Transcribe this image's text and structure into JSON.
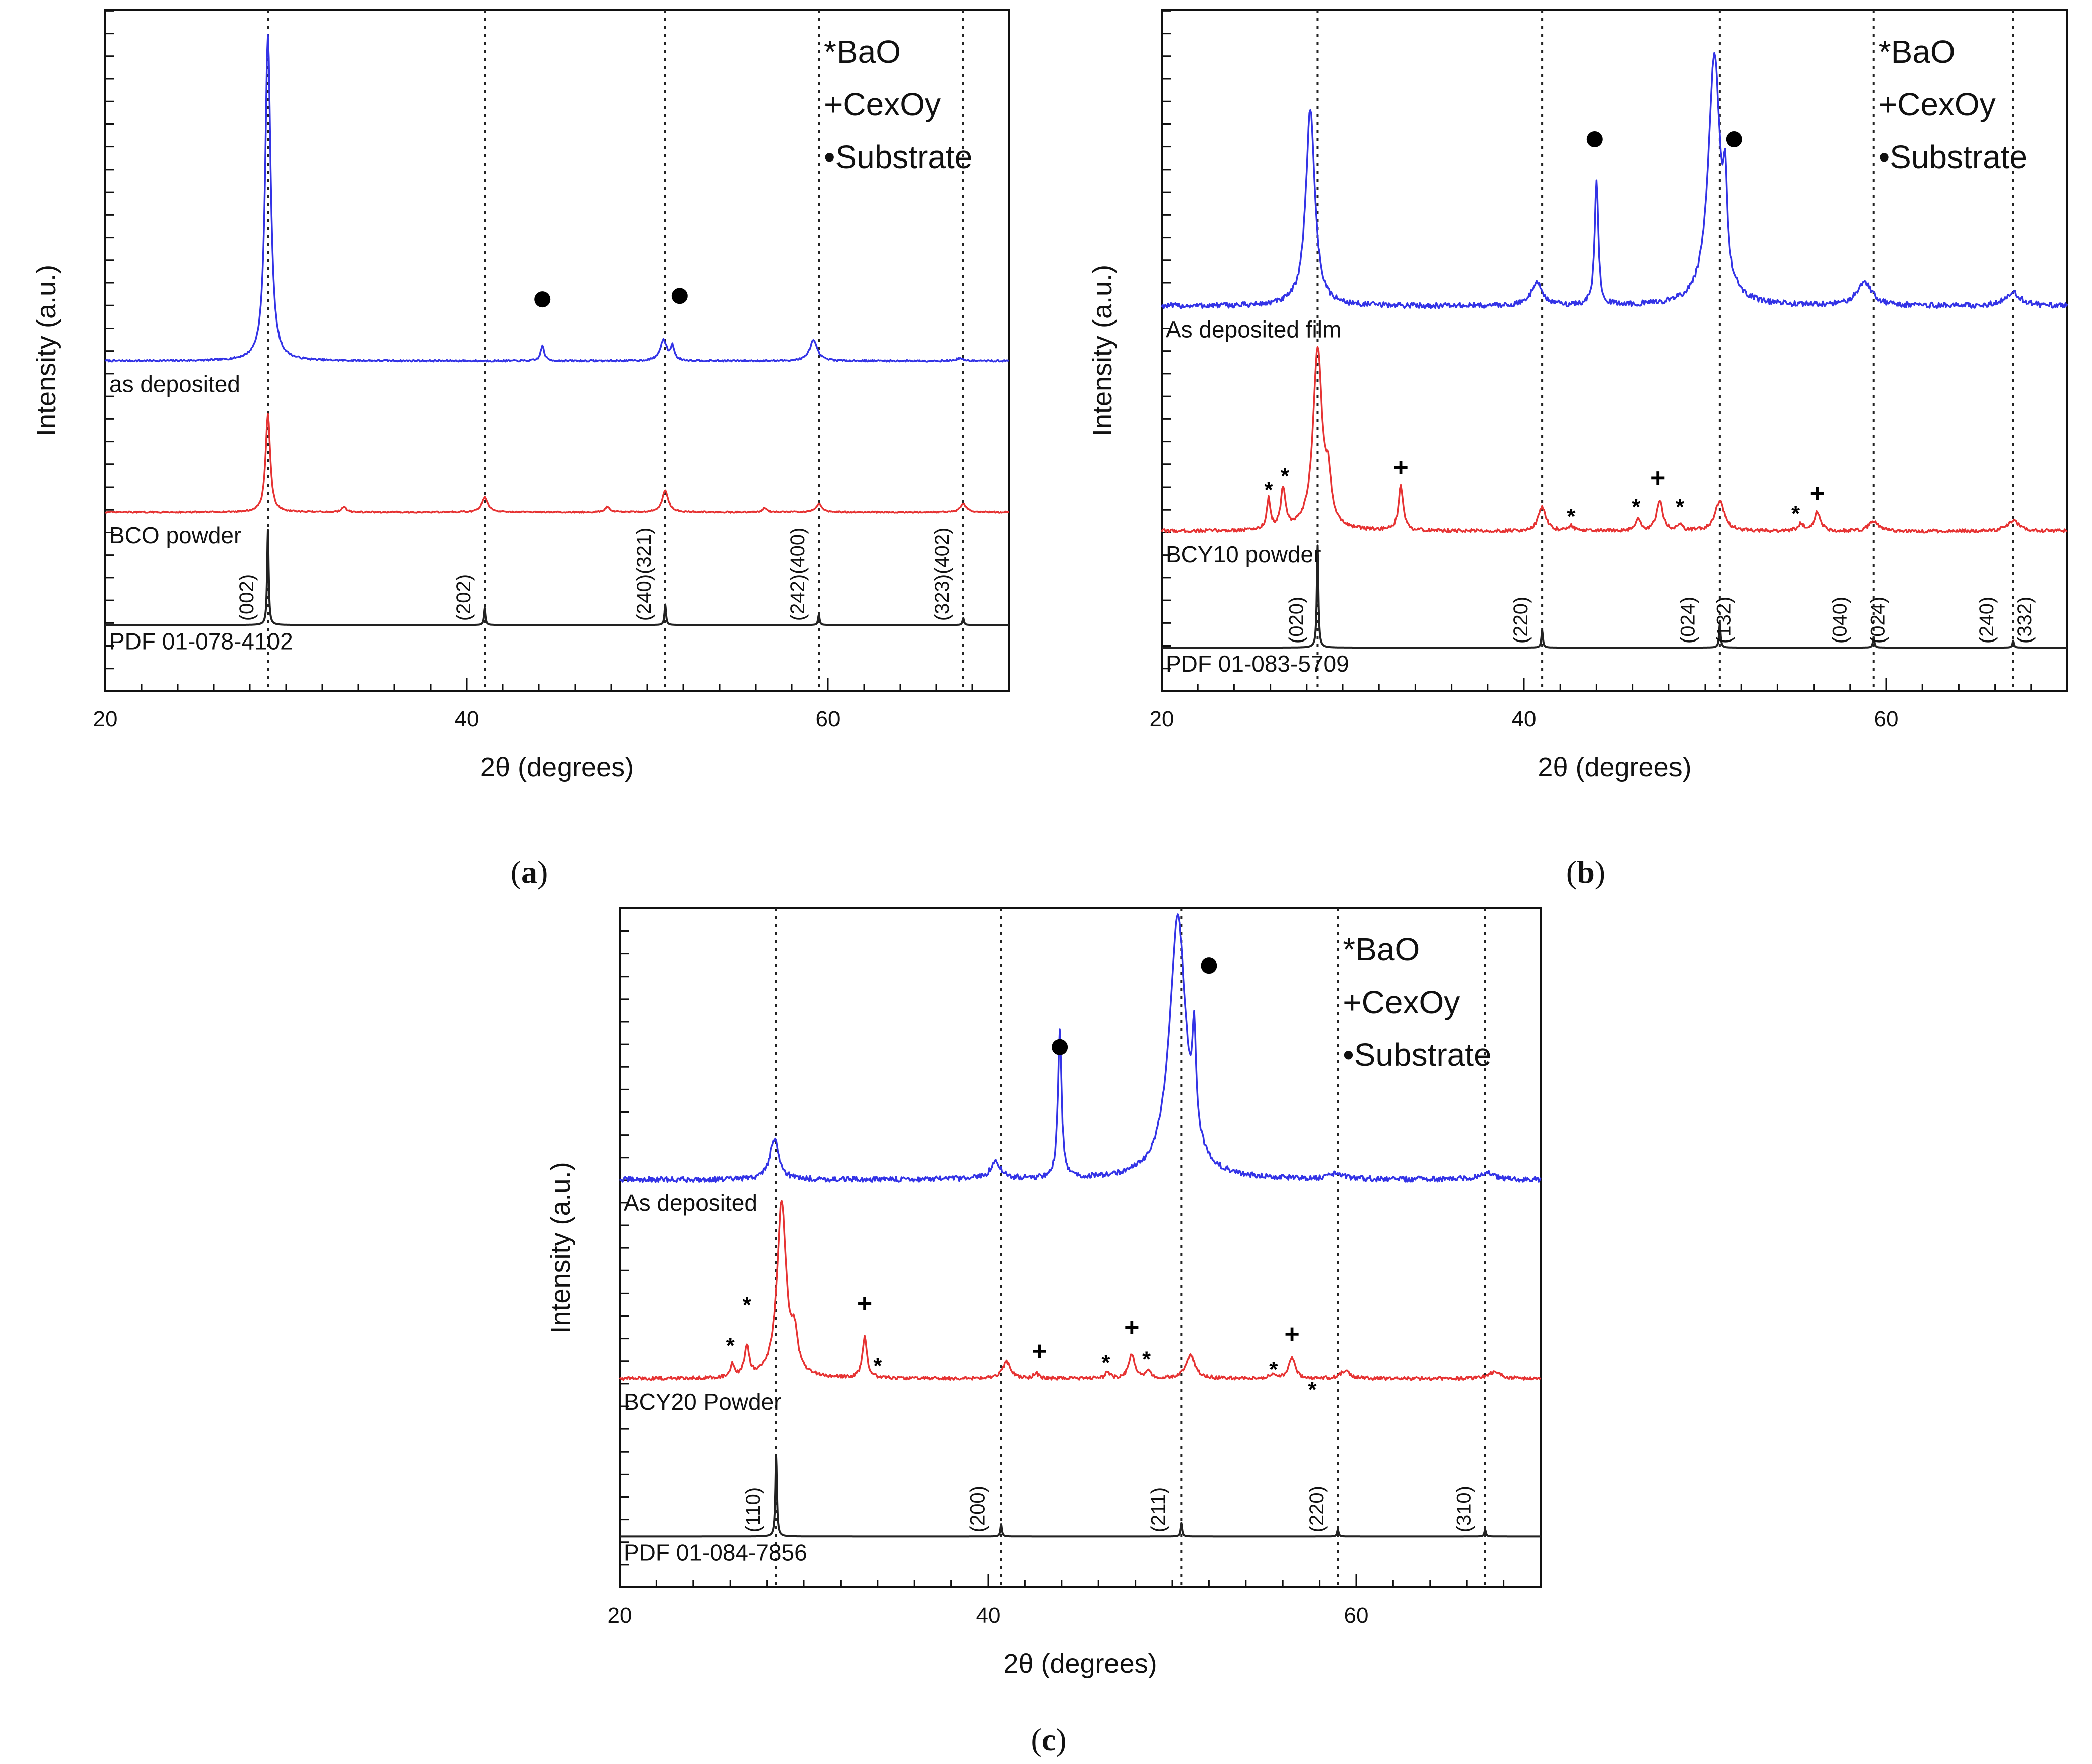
{
  "chart_data": [
    {
      "panel": "a",
      "type": "line",
      "caption": "(a)",
      "caption_letter": "a",
      "xlabel": "2θ (degrees)",
      "ylabel": "Intensity (a.u.)",
      "xlim": [
        20,
        70
      ],
      "ylim": [
        0,
        100
      ],
      "xticks": [
        20,
        40,
        60
      ],
      "reference_lines": [
        29.0,
        41.0,
        51.0,
        59.5,
        67.5
      ],
      "legend": {
        "position": "top-right",
        "items": [
          "*BaO",
          "+CexOy",
          "•Substrate"
        ]
      },
      "series": [
        {
          "name": "as deposited",
          "color": "#3333e6",
          "baseline": 48.5,
          "noise": 0.25,
          "peaks": [
            [
              29.0,
              48,
              0.18
            ],
            [
              44.2,
              2.2,
              0.12
            ],
            [
              50.9,
              3.0,
              0.22
            ],
            [
              51.4,
              2.0,
              0.12
            ],
            [
              59.2,
              3.0,
              0.25
            ],
            [
              67.3,
              0.4,
              0.2
            ]
          ]
        },
        {
          "name": "BCO powder",
          "color": "#e63333",
          "baseline": 26.3,
          "noise": 0.2,
          "peaks": [
            [
              29.0,
              14.5,
              0.15
            ],
            [
              33.2,
              0.8,
              0.15
            ],
            [
              41.0,
              2.2,
              0.2
            ],
            [
              47.8,
              0.8,
              0.15
            ],
            [
              51.0,
              3.2,
              0.2
            ],
            [
              56.5,
              0.6,
              0.15
            ],
            [
              59.5,
              1.2,
              0.2
            ],
            [
              67.5,
              1.2,
              0.2
            ]
          ]
        },
        {
          "name": "PDF 01-078-4102",
          "color": "#222222",
          "baseline": 9.7,
          "noise": 0,
          "stick": true,
          "peaks": [
            [
              29.0,
              14,
              0.05
            ],
            [
              41.0,
              2.5,
              0.05
            ],
            [
              51.0,
              3.0,
              0.05
            ],
            [
              59.5,
              1.5,
              0.05
            ],
            [
              67.5,
              1.0,
              0.05
            ]
          ]
        }
      ],
      "labels": {
        "deposited": "as deposited",
        "powder": "BCO powder",
        "pdf": "PDF 01-078-4102"
      },
      "miller_indices": [
        {
          "x": 28.2,
          "text": "(002)"
        },
        {
          "x": 40.2,
          "text": "(202)"
        },
        {
          "x": 50.2,
          "text": "(240)(321)"
        },
        {
          "x": 58.7,
          "text": "(242)(400)"
        },
        {
          "x": 66.7,
          "text": "(323)(402)"
        }
      ],
      "annotations": [
        {
          "symbol": "dot",
          "x": 44.2,
          "y": 57.5
        },
        {
          "symbol": "dot",
          "x": 51.8,
          "y": 58.0
        }
      ]
    },
    {
      "panel": "b",
      "type": "line",
      "caption": "(b)",
      "caption_letter": "b",
      "xlabel": "2θ (degrees)",
      "ylabel": "Intensity (a.u.)",
      "xlim": [
        20,
        70
      ],
      "ylim": [
        0,
        100
      ],
      "xticks": [
        20,
        40,
        60
      ],
      "reference_lines": [
        28.6,
        41.0,
        50.8,
        59.3,
        67.0
      ],
      "legend": {
        "position": "top-right",
        "items": [
          "*BaO",
          "+CexOy",
          "•Substrate"
        ]
      },
      "series": [
        {
          "name": "As deposited film",
          "color": "#3333e6",
          "baseline": 56.5,
          "noise": 0.8,
          "peaks": [
            [
              28.2,
              29,
              0.3
            ],
            [
              40.7,
              3.5,
              0.35
            ],
            [
              44.0,
              18.5,
              0.12
            ],
            [
              50.5,
              36.5,
              0.4
            ],
            [
              51.1,
              12,
              0.12
            ],
            [
              58.8,
              3.5,
              0.5
            ],
            [
              67.0,
              2.0,
              0.5
            ]
          ]
        },
        {
          "name": "BCY10 powder",
          "color": "#e63333",
          "baseline": 23.5,
          "noise": 0.5,
          "peaks": [
            [
              25.9,
              4.5,
              0.12
            ],
            [
              26.7,
              6.0,
              0.15
            ],
            [
              28.6,
              26.5,
              0.3
            ],
            [
              29.2,
              6.0,
              0.2
            ],
            [
              33.2,
              6.5,
              0.15
            ],
            [
              41.0,
              3.5,
              0.25
            ],
            [
              42.6,
              0.8,
              0.15
            ],
            [
              46.3,
              2.0,
              0.15
            ],
            [
              47.5,
              4.5,
              0.2
            ],
            [
              48.6,
              1.0,
              0.15
            ],
            [
              50.8,
              4.5,
              0.3
            ],
            [
              55.3,
              1.0,
              0.2
            ],
            [
              56.2,
              2.8,
              0.2
            ],
            [
              59.3,
              1.5,
              0.3
            ],
            [
              67.0,
              1.5,
              0.4
            ]
          ]
        },
        {
          "name": "PDF 01-083-5709",
          "color": "#222222",
          "baseline": 6.4,
          "noise": 0,
          "stick": true,
          "peaks": [
            [
              28.6,
              15,
              0.05
            ],
            [
              41.0,
              2.5,
              0.05
            ],
            [
              50.8,
              3.5,
              0.05
            ],
            [
              59.3,
              1.5,
              0.05
            ],
            [
              67.0,
              1.0,
              0.05
            ]
          ]
        }
      ],
      "labels": {
        "deposited": "As deposited film",
        "powder": "BCY10 powder",
        "pdf": "PDF 01-083-5709"
      },
      "miller_indices": [
        {
          "x": 27.8,
          "text": "(020)"
        },
        {
          "x": 40.2,
          "text": "(220)"
        },
        {
          "x": 49.4,
          "text": "(024)"
        },
        {
          "x": 51.4,
          "text": "(132)"
        },
        {
          "x": 57.8,
          "text": "(040)"
        },
        {
          "x": 59.9,
          "text": "(024)"
        },
        {
          "x": 65.9,
          "text": "(240)"
        },
        {
          "x": 68.0,
          "text": "(332)"
        }
      ],
      "annotations": [
        {
          "symbol": "dot",
          "x": 43.9,
          "y": 81.0
        },
        {
          "symbol": "dot",
          "x": 51.6,
          "y": 81.0
        },
        {
          "symbol": "*",
          "x": 25.9,
          "y": 28.5
        },
        {
          "symbol": "*",
          "x": 26.8,
          "y": 30.5
        },
        {
          "symbol": "+",
          "x": 33.2,
          "y": 31.5
        },
        {
          "symbol": "*",
          "x": 42.6,
          "y": 24.6
        },
        {
          "symbol": "*",
          "x": 46.2,
          "y": 26.0
        },
        {
          "symbol": "+",
          "x": 47.4,
          "y": 30.0
        },
        {
          "symbol": "*",
          "x": 48.6,
          "y": 26.0
        },
        {
          "symbol": "*",
          "x": 55.0,
          "y": 25.0
        },
        {
          "symbol": "+",
          "x": 56.2,
          "y": 27.8
        }
      ]
    },
    {
      "panel": "c",
      "type": "line",
      "caption": "(c)",
      "caption_letter": "c",
      "xlabel": "2θ (degrees)",
      "ylabel": "Intensity (a.u.)",
      "xlim": [
        20,
        70
      ],
      "ylim": [
        0,
        100
      ],
      "xticks": [
        20,
        40,
        60
      ],
      "reference_lines": [
        28.5,
        40.7,
        50.5,
        59.0,
        67.0
      ],
      "legend": {
        "position": "top-right",
        "items": [
          "*BaO",
          "+CexOy",
          "•Substrate"
        ]
      },
      "series": [
        {
          "name": "As deposited",
          "color": "#3333e6",
          "baseline": 60.0,
          "noise": 0.8,
          "peaks": [
            [
              28.4,
              6.0,
              0.3
            ],
            [
              40.4,
              2.5,
              0.35
            ],
            [
              43.9,
              21.5,
              0.12
            ],
            [
              50.3,
              38.5,
              0.55
            ],
            [
              51.2,
              14.0,
              0.12
            ],
            [
              58.9,
              0.8,
              0.4
            ],
            [
              67.0,
              1.0,
              0.5
            ]
          ]
        },
        {
          "name": "BCY20 Powder",
          "color": "#e63333",
          "baseline": 30.7,
          "noise": 0.5,
          "peaks": [
            [
              26.1,
              1.8,
              0.12
            ],
            [
              26.9,
              4.5,
              0.15
            ],
            [
              28.8,
              26.0,
              0.3
            ],
            [
              29.5,
              5.0,
              0.2
            ],
            [
              33.3,
              6.0,
              0.15
            ],
            [
              41.0,
              2.5,
              0.25
            ],
            [
              42.6,
              0.8,
              0.15
            ],
            [
              46.5,
              1.0,
              0.15
            ],
            [
              47.8,
              3.5,
              0.2
            ],
            [
              48.7,
              1.0,
              0.15
            ],
            [
              51.0,
              3.5,
              0.3
            ],
            [
              55.5,
              0.8,
              0.2
            ],
            [
              56.5,
              3.0,
              0.2
            ],
            [
              59.4,
              1.2,
              0.3
            ],
            [
              67.5,
              1.0,
              0.4
            ]
          ]
        },
        {
          "name": "PDF 01-084-7856",
          "color": "#222222",
          "baseline": 7.5,
          "noise": 0,
          "stick": true,
          "peaks": [
            [
              28.5,
              12,
              0.05
            ],
            [
              40.7,
              1.8,
              0.05
            ],
            [
              50.5,
              2.0,
              0.05
            ],
            [
              59.0,
              1.0,
              0.05
            ],
            [
              67.0,
              1.0,
              0.05
            ]
          ]
        }
      ],
      "labels": {
        "deposited": "As deposited",
        "powder": "BCY20 Powder",
        "pdf": "PDF 01-084-7856"
      },
      "miller_indices": [
        {
          "x": 27.6,
          "text": "(110)"
        },
        {
          "x": 39.8,
          "text": "(200)"
        },
        {
          "x": 49.6,
          "text": "(211)"
        },
        {
          "x": 58.2,
          "text": "(220)"
        },
        {
          "x": 66.2,
          "text": "(310)"
        }
      ],
      "annotations": [
        {
          "symbol": "dot",
          "x": 43.9,
          "y": 79.5
        },
        {
          "symbol": "dot",
          "x": 52.0,
          "y": 91.5
        },
        {
          "symbol": "*",
          "x": 26.0,
          "y": 34.5
        },
        {
          "symbol": "*",
          "x": 26.9,
          "y": 40.5
        },
        {
          "symbol": "+",
          "x": 33.3,
          "y": 40.5
        },
        {
          "symbol": "*",
          "x": 34.0,
          "y": 31.5
        },
        {
          "symbol": "+",
          "x": 42.8,
          "y": 33.5
        },
        {
          "symbol": "*",
          "x": 46.4,
          "y": 32.0
        },
        {
          "symbol": "+",
          "x": 47.8,
          "y": 37.0
        },
        {
          "symbol": "*",
          "x": 48.6,
          "y": 32.5
        },
        {
          "symbol": "*",
          "x": 55.5,
          "y": 31.0
        },
        {
          "symbol": "+",
          "x": 56.5,
          "y": 36.0
        },
        {
          "symbol": "*",
          "x": 57.6,
          "y": 28.0
        }
      ]
    }
  ]
}
